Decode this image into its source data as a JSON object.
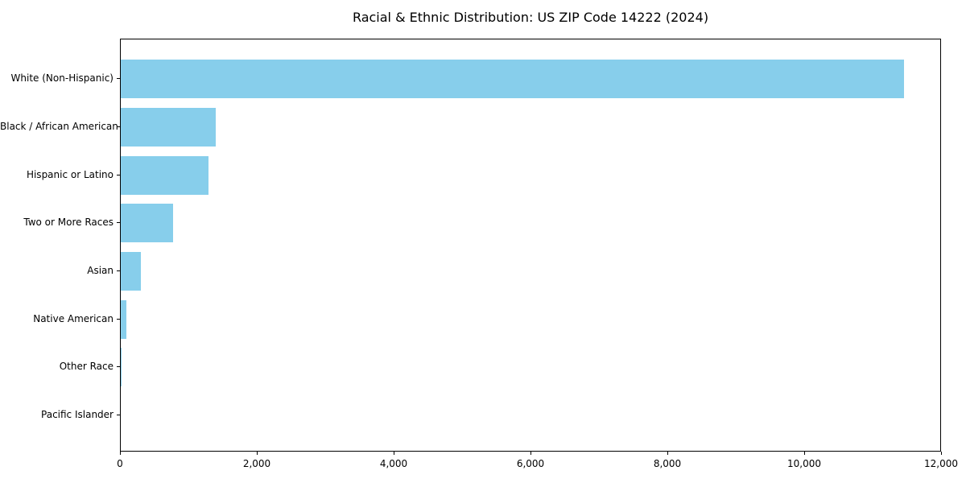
{
  "chart_data": {
    "type": "bar",
    "orientation": "horizontal",
    "title": "Racial & Ethnic Distribution: US ZIP Code 14222 (2024)",
    "xlabel": "",
    "ylabel": "",
    "categories": [
      "White (Non-Hispanic)",
      "Black / African American",
      "Hispanic or Latino",
      "Two or More Races",
      "Asian",
      "Native American",
      "Other Race",
      "Pacific Islander"
    ],
    "values": [
      11450,
      1385,
      1280,
      770,
      290,
      80,
      15,
      0
    ],
    "xlim": [
      0,
      12000
    ],
    "xticks": [
      0,
      2000,
      4000,
      6000,
      8000,
      10000,
      12000
    ],
    "xtick_labels": [
      "0",
      "2,000",
      "4,000",
      "6,000",
      "8,000",
      "10,000",
      "12,000"
    ],
    "bar_color": "#87CEEB",
    "spine_color": "#000000",
    "text_color": "#000000",
    "grid": false,
    "legend": null
  }
}
